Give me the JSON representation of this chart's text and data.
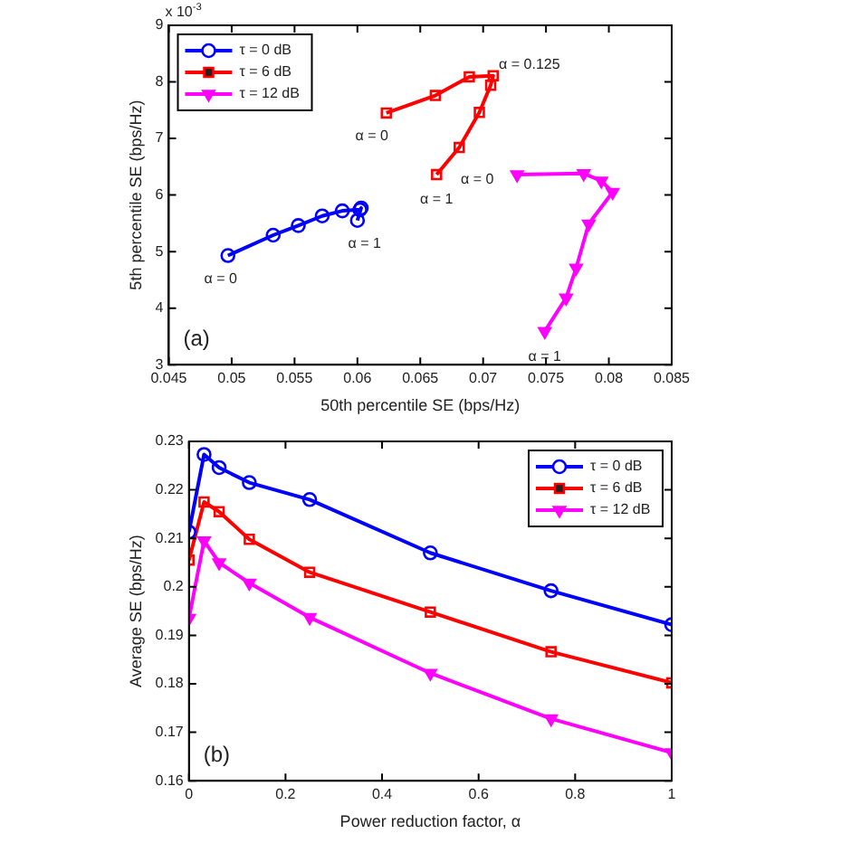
{
  "chart_data": [
    {
      "type": "line",
      "xlabel": "50th percentile SE (bps/Hz)",
      "ylabel": "5th percentile SE (bps/Hz)",
      "xlim": [
        0.045,
        0.085
      ],
      "xticks": [
        0.045,
        0.05,
        0.055,
        0.06,
        0.065,
        0.07,
        0.075,
        0.08,
        0.085
      ],
      "ylim": [
        3,
        9
      ],
      "yticks": [
        3,
        4,
        5,
        6,
        7,
        8,
        9
      ],
      "legend": "top left",
      "grid": false,
      "annotations": [
        "x 10$^{-3}$",
        "(a)",
        {
          "text": "α = 0",
          "x": 0.0497,
          "y": 4.93
        },
        {
          "text": "α = 1",
          "x": 0.06,
          "y": 5.55
        },
        {
          "text": "α = 0",
          "x": 0.0623,
          "y": 7.45
        },
        {
          "text": "α = 0.125",
          "x": 0.0708,
          "y": 8.11
        },
        {
          "text": "α = 1",
          "x": 0.0663,
          "y": 6.36
        },
        {
          "text": "α = 0",
          "x": 0.0727,
          "y": 6.36
        },
        {
          "text": "α = 1",
          "x": 0.0749,
          "y": 3.59
        }
      ],
      "series": [
        {
          "name": "τ = 0 dB",
          "color": "#0000ff",
          "marker": "circle",
          "x": [
            0.0497,
            0.0533,
            0.0553,
            0.0572,
            0.0588,
            0.0602,
            0.0603,
            0.06
          ],
          "values": [
            4.93,
            5.29,
            5.46,
            5.63,
            5.72,
            5.74,
            5.77,
            5.55
          ]
        },
        {
          "name": "τ = 6 dB",
          "color": "#ff0000",
          "marker": "square",
          "x": [
            0.0623,
            0.0662,
            0.0689,
            0.0708,
            0.0706,
            0.0697,
            0.0681,
            0.0663
          ],
          "values": [
            7.45,
            7.76,
            8.09,
            8.11,
            7.94,
            7.46,
            6.84,
            6.36
          ]
        },
        {
          "name": "τ = 12 dB",
          "color": "#ff00ff",
          "marker": "triangle",
          "x": [
            0.0727,
            0.078,
            0.0794,
            0.0803,
            0.0784,
            0.0774,
            0.0766,
            0.0749
          ],
          "values": [
            6.36,
            6.38,
            6.25,
            6.05,
            5.49,
            4.71,
            4.18,
            3.59
          ]
        }
      ]
    },
    {
      "type": "line",
      "xlabel": "Power reduction factor, α",
      "ylabel": "Average SE (bps/Hz)",
      "xlim": [
        0,
        1
      ],
      "xticks": [
        0,
        0.2,
        0.4,
        0.6,
        0.8,
        1
      ],
      "ylim": [
        0.16,
        0.23
      ],
      "yticks": [
        0.16,
        0.17,
        0.18,
        0.19,
        0.2,
        0.21,
        0.22,
        0.23
      ],
      "legend": "top right",
      "grid": false,
      "annotations": [
        "(b)"
      ],
      "x": [
        0,
        0.03125,
        0.0625,
        0.125,
        0.25,
        0.5,
        0.75,
        1
      ],
      "series": [
        {
          "name": "τ = 0 dB",
          "color": "#0000ff",
          "marker": "circle",
          "values": [
            0.2113,
            0.2273,
            0.2246,
            0.2215,
            0.218,
            0.207,
            0.1992,
            0.1922
          ]
        },
        {
          "name": "τ = 6 dB",
          "color": "#ff0000",
          "marker": "square",
          "values": [
            0.2055,
            0.2175,
            0.2155,
            0.2098,
            0.203,
            0.1948,
            0.1866,
            0.1802
          ]
        },
        {
          "name": "τ = 12 dB",
          "color": "#ff00ff",
          "marker": "triangle",
          "values": [
            0.1935,
            0.2095,
            0.205,
            0.2008,
            0.1937,
            0.1822,
            0.1728,
            0.1658
          ]
        }
      ]
    }
  ]
}
